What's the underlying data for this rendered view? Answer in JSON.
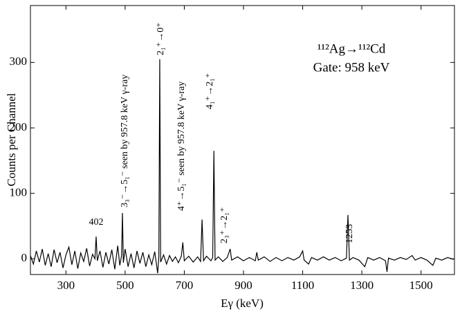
{
  "chart_data": {
    "type": "line",
    "title": "¹¹²Ag→¹¹²Cd",
    "subtitle": "Gate: 958 keV",
    "x_label": "Eγ (keV)",
    "y_label": "Counts per Channel",
    "color": "#000000",
    "xlim": [
      180,
      1613
    ],
    "ylim": [
      -24,
      387
    ],
    "xticks": [
      300,
      500,
      700,
      900,
      1100,
      1300,
      1500
    ],
    "yticks": [
      0,
      100,
      200,
      300
    ],
    "annotations": [
      "402",
      "3₃⁻→5₁⁻ seen by 957.8 keV γ-ray",
      "2₁⁺→0⁺",
      "4⁺→5₁⁻ seen by 957.8 keV γ-ray",
      "4₁⁺→2₁⁺",
      "2₃⁺→2₁⁺",
      "1253"
    ],
    "x": [
      180,
      190,
      200,
      210,
      220,
      230,
      240,
      250,
      260,
      270,
      280,
      290,
      300,
      310,
      320,
      330,
      340,
      350,
      360,
      370,
      380,
      390,
      398,
      402,
      406,
      415,
      425,
      435,
      445,
      455,
      465,
      475,
      482,
      488,
      491,
      494,
      500,
      510,
      520,
      530,
      540,
      550,
      560,
      570,
      580,
      590,
      600,
      610,
      614,
      617,
      620,
      630,
      640,
      650,
      660,
      670,
      680,
      690,
      695,
      700,
      715,
      730,
      745,
      755,
      760,
      765,
      775,
      790,
      796,
      800,
      804,
      815,
      830,
      845,
      855,
      860,
      880,
      900,
      920,
      940,
      945,
      950,
      970,
      990,
      1010,
      1030,
      1050,
      1070,
      1090,
      1100,
      1105,
      1120,
      1130,
      1150,
      1170,
      1190,
      1210,
      1230,
      1248,
      1253,
      1258,
      1270,
      1290,
      1310,
      1320,
      1340,
      1360,
      1380,
      1385,
      1390,
      1410,
      1430,
      1450,
      1470,
      1480,
      1500,
      1520,
      1540,
      1550,
      1570,
      1590,
      1610
    ],
    "values": [
      5,
      -8,
      12,
      -5,
      15,
      -10,
      8,
      -12,
      14,
      -6,
      10,
      -14,
      6,
      18,
      -9,
      12,
      -15,
      9,
      -4,
      16,
      -11,
      7,
      0,
      34,
      -3,
      12,
      -13,
      10,
      -8,
      14,
      -16,
      20,
      -10,
      5,
      70,
      -6,
      15,
      -12,
      8,
      -14,
      12,
      -7,
      10,
      -12,
      6,
      -9,
      11,
      -22,
      4,
      305,
      -5,
      6,
      -8,
      5,
      -4,
      3,
      -6,
      4,
      25,
      -3,
      4,
      -5,
      3,
      -4,
      60,
      -3,
      4,
      -3,
      2,
      165,
      -2,
      3,
      -4,
      2,
      15,
      -2,
      3,
      -3,
      2,
      -3,
      10,
      -2,
      3,
      -4,
      2,
      -3,
      2,
      -2,
      3,
      12,
      -2,
      -8,
      2,
      -2,
      3,
      -2,
      2,
      -3,
      1,
      67,
      -2,
      2,
      -2,
      -12,
      2,
      -2,
      2,
      -3,
      -20,
      1,
      -2,
      2,
      -1,
      5,
      -2,
      2,
      -2,
      -10,
      1,
      -2,
      2,
      -1
    ]
  }
}
